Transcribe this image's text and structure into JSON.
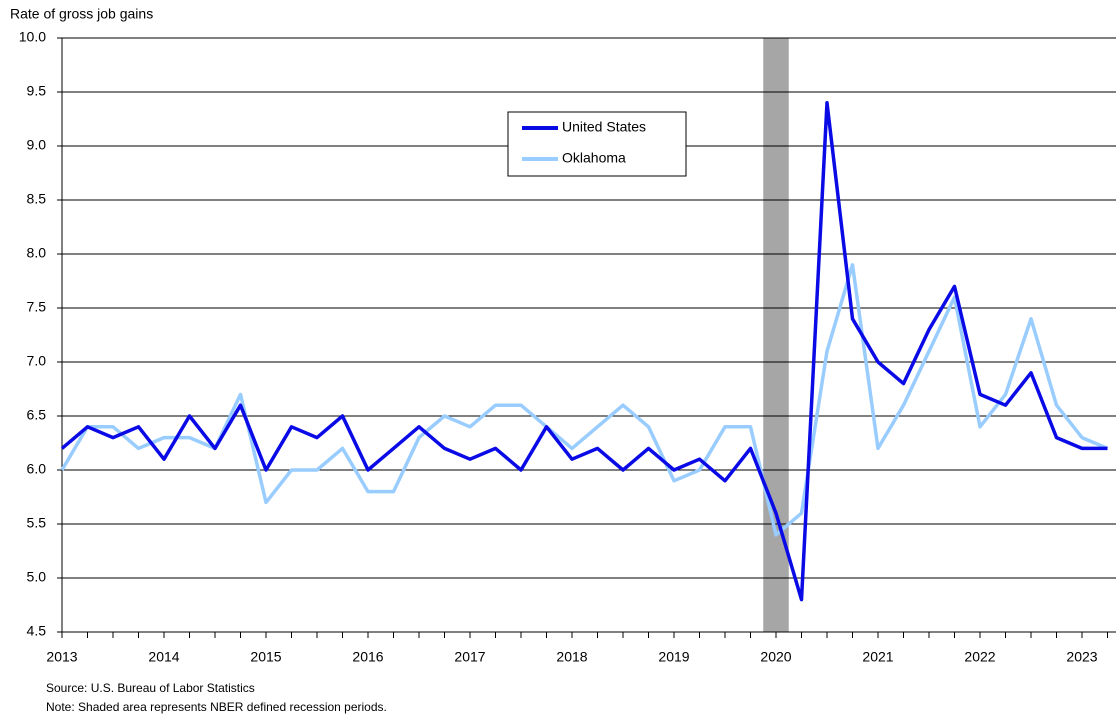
{
  "chart_data": {
    "type": "line",
    "y_label": "Rate of gross job gains",
    "categories": [
      "2013",
      null,
      null,
      null,
      "2014",
      null,
      null,
      null,
      "2015",
      null,
      null,
      null,
      "2016",
      null,
      null,
      null,
      "2017",
      null,
      null,
      null,
      "2018",
      null,
      null,
      null,
      "2019",
      null,
      null,
      null,
      "2020",
      null,
      null,
      null,
      "2021",
      null,
      null,
      null,
      "2022",
      null,
      null,
      null,
      "2023",
      null
    ],
    "series": [
      {
        "name": "United States",
        "color": "#0a0ae6",
        "values": [
          6.2,
          6.4,
          6.3,
          6.4,
          6.1,
          6.5,
          6.2,
          6.6,
          6.0,
          6.4,
          6.3,
          6.5,
          6.0,
          6.2,
          6.4,
          6.2,
          6.1,
          6.2,
          6.0,
          6.4,
          6.1,
          6.2,
          6.0,
          6.2,
          6.0,
          6.1,
          5.9,
          6.2,
          5.6,
          4.8,
          9.4,
          7.4,
          7.0,
          6.8,
          7.3,
          7.7,
          6.7,
          6.6,
          6.9,
          6.3,
          6.2,
          6.2
        ]
      },
      {
        "name": "Oklahoma",
        "color": "#99ccff",
        "values": [
          6.0,
          6.4,
          6.4,
          6.2,
          6.3,
          6.3,
          6.2,
          6.7,
          5.7,
          6.0,
          6.0,
          6.2,
          5.8,
          5.8,
          6.3,
          6.5,
          6.4,
          6.6,
          6.6,
          6.4,
          6.2,
          6.4,
          6.6,
          6.4,
          5.9,
          6.0,
          6.4,
          6.4,
          5.4,
          5.6,
          7.1,
          7.9,
          6.2,
          6.6,
          7.1,
          7.6,
          6.4,
          6.7,
          7.4,
          6.6,
          6.3,
          6.2
        ]
      }
    ],
    "ylim": [
      4.5,
      10
    ],
    "yticks": [
      4.5,
      {
        "value": 5,
        "label": "5.0"
      },
      5.5,
      {
        "value": 6,
        "label": "6.0"
      },
      6.5,
      {
        "value": 7,
        "label": "7.0"
      },
      7.5,
      {
        "value": 8,
        "label": "8.0"
      },
      8.5,
      {
        "value": 9,
        "label": "9.0"
      },
      9.5,
      {
        "value": 10,
        "label": "10.0"
      }
    ],
    "grid": true,
    "recession": {
      "from": 27.5,
      "to": 28.5,
      "color": "#a6a6a6"
    },
    "source": "Source: U.S. Bureau of Labor Statistics",
    "note": "Note: Shaded area represents NBER defined recession periods."
  }
}
